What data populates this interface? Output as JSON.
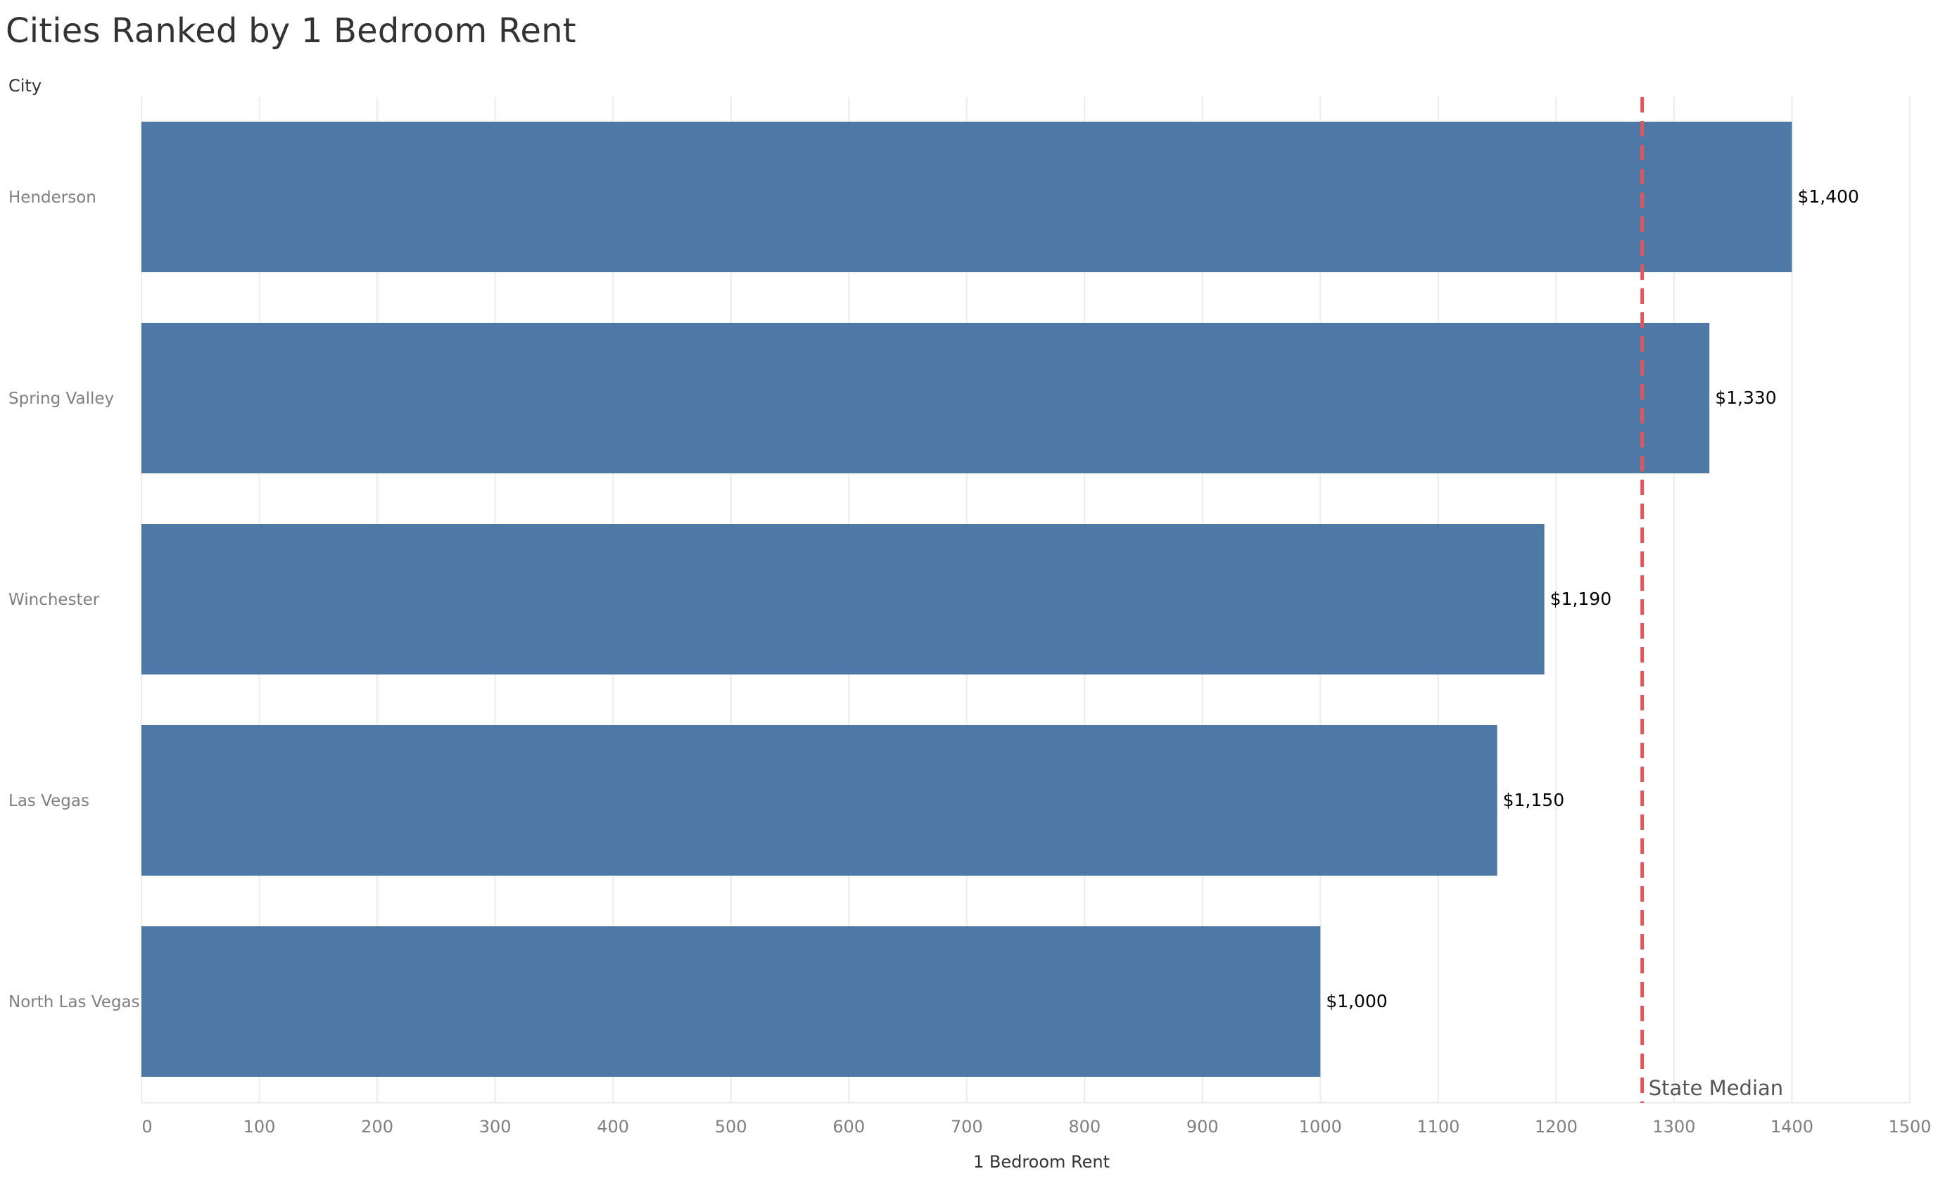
{
  "chart_data": {
    "type": "bar",
    "orientation": "horizontal",
    "title": "Cities Ranked by 1 Bedroom Rent",
    "ylabel": "City",
    "xlabel": "1 Bedroom Rent",
    "categories": [
      "Henderson",
      "Spring Valley",
      "Winchester",
      "Las Vegas",
      "North Las Vegas"
    ],
    "values": [
      1400,
      1330,
      1190,
      1150,
      1000
    ],
    "data_labels": [
      "$1,400",
      "$1,330",
      "$1,190",
      "$1,150",
      "$1,000"
    ],
    "xlim": [
      0,
      1500
    ],
    "xticks": [
      0,
      100,
      200,
      300,
      400,
      500,
      600,
      700,
      800,
      900,
      1000,
      1100,
      1200,
      1300,
      1400,
      1500
    ],
    "reference_line": {
      "label": "State Median",
      "value": 1273,
      "color": "#e15759",
      "style": "dashed"
    },
    "bar_color": "#4e79a7",
    "grid": true
  }
}
